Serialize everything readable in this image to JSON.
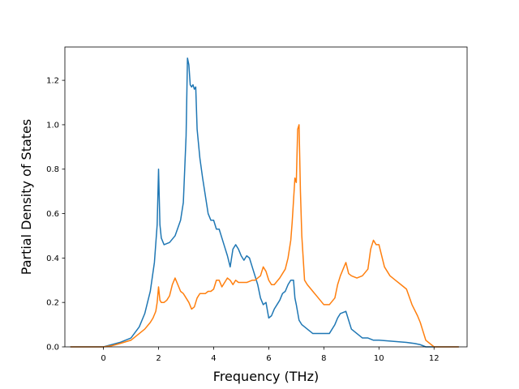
{
  "chart_data": {
    "type": "line",
    "title": "",
    "xlabel": "Frequency (THz)",
    "ylabel": "Partial Density of States",
    "xlim": [
      -1.4,
      13.2
    ],
    "ylim": [
      0.0,
      1.35
    ],
    "xticks": [
      0,
      2,
      4,
      6,
      8,
      10,
      12
    ],
    "yticks": [
      0.0,
      0.2,
      0.4,
      0.6,
      0.8,
      1.0,
      1.2
    ],
    "xtick_labels": [
      "0",
      "2",
      "4",
      "6",
      "8",
      "10",
      "12"
    ],
    "ytick_labels": [
      "0.0",
      "0.2",
      "0.4",
      "0.6",
      "0.8",
      "1.0",
      "1.2"
    ],
    "grid": false,
    "legend": "none",
    "series": [
      {
        "color": "#1f77b4",
        "x": [
          -1.2,
          0.0,
          0.3,
          0.6,
          1.0,
          1.3,
          1.5,
          1.7,
          1.85,
          1.95,
          2.0,
          2.05,
          2.1,
          2.2,
          2.4,
          2.6,
          2.8,
          2.9,
          2.95,
          3.0,
          3.05,
          3.1,
          3.15,
          3.2,
          3.25,
          3.3,
          3.35,
          3.4,
          3.5,
          3.6,
          3.7,
          3.8,
          3.9,
          4.0,
          4.1,
          4.2,
          4.3,
          4.4,
          4.5,
          4.6,
          4.7,
          4.8,
          4.9,
          5.0,
          5.1,
          5.2,
          5.3,
          5.4,
          5.5,
          5.6,
          5.7,
          5.8,
          5.9,
          6.0,
          6.1,
          6.2,
          6.3,
          6.4,
          6.5,
          6.6,
          6.7,
          6.8,
          6.9,
          6.95,
          7.0,
          7.1,
          7.2,
          7.3,
          7.4,
          7.6,
          7.8,
          8.0,
          8.2,
          8.4,
          8.5,
          8.6,
          8.8,
          8.9,
          9.0,
          9.2,
          9.4,
          9.6,
          9.8,
          10.0,
          10.5,
          11.0,
          11.3,
          11.5,
          11.6,
          11.7,
          12.0,
          12.9
        ],
        "y": [
          0.0,
          0.0,
          0.01,
          0.02,
          0.04,
          0.09,
          0.15,
          0.25,
          0.38,
          0.55,
          0.8,
          0.55,
          0.49,
          0.46,
          0.47,
          0.5,
          0.57,
          0.65,
          0.8,
          0.95,
          1.3,
          1.27,
          1.18,
          1.17,
          1.18,
          1.16,
          1.17,
          0.98,
          0.85,
          0.76,
          0.68,
          0.6,
          0.57,
          0.57,
          0.53,
          0.53,
          0.49,
          0.45,
          0.41,
          0.36,
          0.44,
          0.46,
          0.44,
          0.41,
          0.39,
          0.41,
          0.4,
          0.36,
          0.32,
          0.28,
          0.22,
          0.19,
          0.2,
          0.13,
          0.14,
          0.17,
          0.19,
          0.21,
          0.24,
          0.25,
          0.28,
          0.3,
          0.3,
          0.22,
          0.19,
          0.12,
          0.1,
          0.09,
          0.08,
          0.06,
          0.06,
          0.06,
          0.06,
          0.1,
          0.13,
          0.15,
          0.16,
          0.12,
          0.08,
          0.06,
          0.04,
          0.04,
          0.03,
          0.03,
          0.025,
          0.02,
          0.015,
          0.01,
          0.005,
          0.0,
          0.0,
          0.0
        ]
      },
      {
        "color": "#ff7f0e",
        "x": [
          -1.2,
          0.0,
          0.3,
          0.6,
          1.0,
          1.3,
          1.5,
          1.7,
          1.8,
          1.9,
          1.95,
          2.0,
          2.05,
          2.1,
          2.2,
          2.3,
          2.4,
          2.5,
          2.6,
          2.7,
          2.8,
          2.9,
          3.0,
          3.1,
          3.2,
          3.3,
          3.4,
          3.5,
          3.6,
          3.7,
          3.8,
          3.9,
          4.0,
          4.1,
          4.2,
          4.3,
          4.4,
          4.5,
          4.6,
          4.7,
          4.8,
          4.9,
          5.0,
          5.2,
          5.4,
          5.5,
          5.6,
          5.7,
          5.8,
          5.9,
          6.0,
          6.1,
          6.2,
          6.4,
          6.6,
          6.7,
          6.8,
          6.85,
          6.9,
          6.95,
          7.0,
          7.05,
          7.1,
          7.15,
          7.2,
          7.3,
          7.4,
          7.6,
          7.8,
          8.0,
          8.2,
          8.4,
          8.5,
          8.6,
          8.7,
          8.8,
          8.9,
          9.0,
          9.2,
          9.4,
          9.6,
          9.7,
          9.8,
          9.9,
          10.0,
          10.2,
          10.4,
          10.6,
          10.8,
          10.9,
          11.0,
          11.2,
          11.4,
          11.5,
          11.6,
          11.7,
          12.0,
          12.9
        ],
        "y": [
          0.0,
          0.0,
          0.005,
          0.015,
          0.03,
          0.06,
          0.08,
          0.11,
          0.13,
          0.16,
          0.2,
          0.27,
          0.21,
          0.2,
          0.2,
          0.21,
          0.23,
          0.28,
          0.31,
          0.28,
          0.25,
          0.24,
          0.22,
          0.2,
          0.17,
          0.18,
          0.22,
          0.24,
          0.24,
          0.24,
          0.25,
          0.25,
          0.26,
          0.3,
          0.3,
          0.27,
          0.29,
          0.31,
          0.3,
          0.28,
          0.3,
          0.29,
          0.29,
          0.29,
          0.3,
          0.3,
          0.31,
          0.32,
          0.36,
          0.34,
          0.3,
          0.28,
          0.28,
          0.31,
          0.35,
          0.4,
          0.48,
          0.56,
          0.66,
          0.76,
          0.74,
          0.98,
          1.0,
          0.7,
          0.5,
          0.3,
          0.28,
          0.25,
          0.22,
          0.19,
          0.19,
          0.22,
          0.28,
          0.32,
          0.35,
          0.38,
          0.33,
          0.32,
          0.31,
          0.32,
          0.35,
          0.44,
          0.48,
          0.46,
          0.46,
          0.36,
          0.32,
          0.3,
          0.28,
          0.27,
          0.26,
          0.19,
          0.14,
          0.11,
          0.07,
          0.03,
          0.0,
          0.0
        ]
      }
    ]
  }
}
